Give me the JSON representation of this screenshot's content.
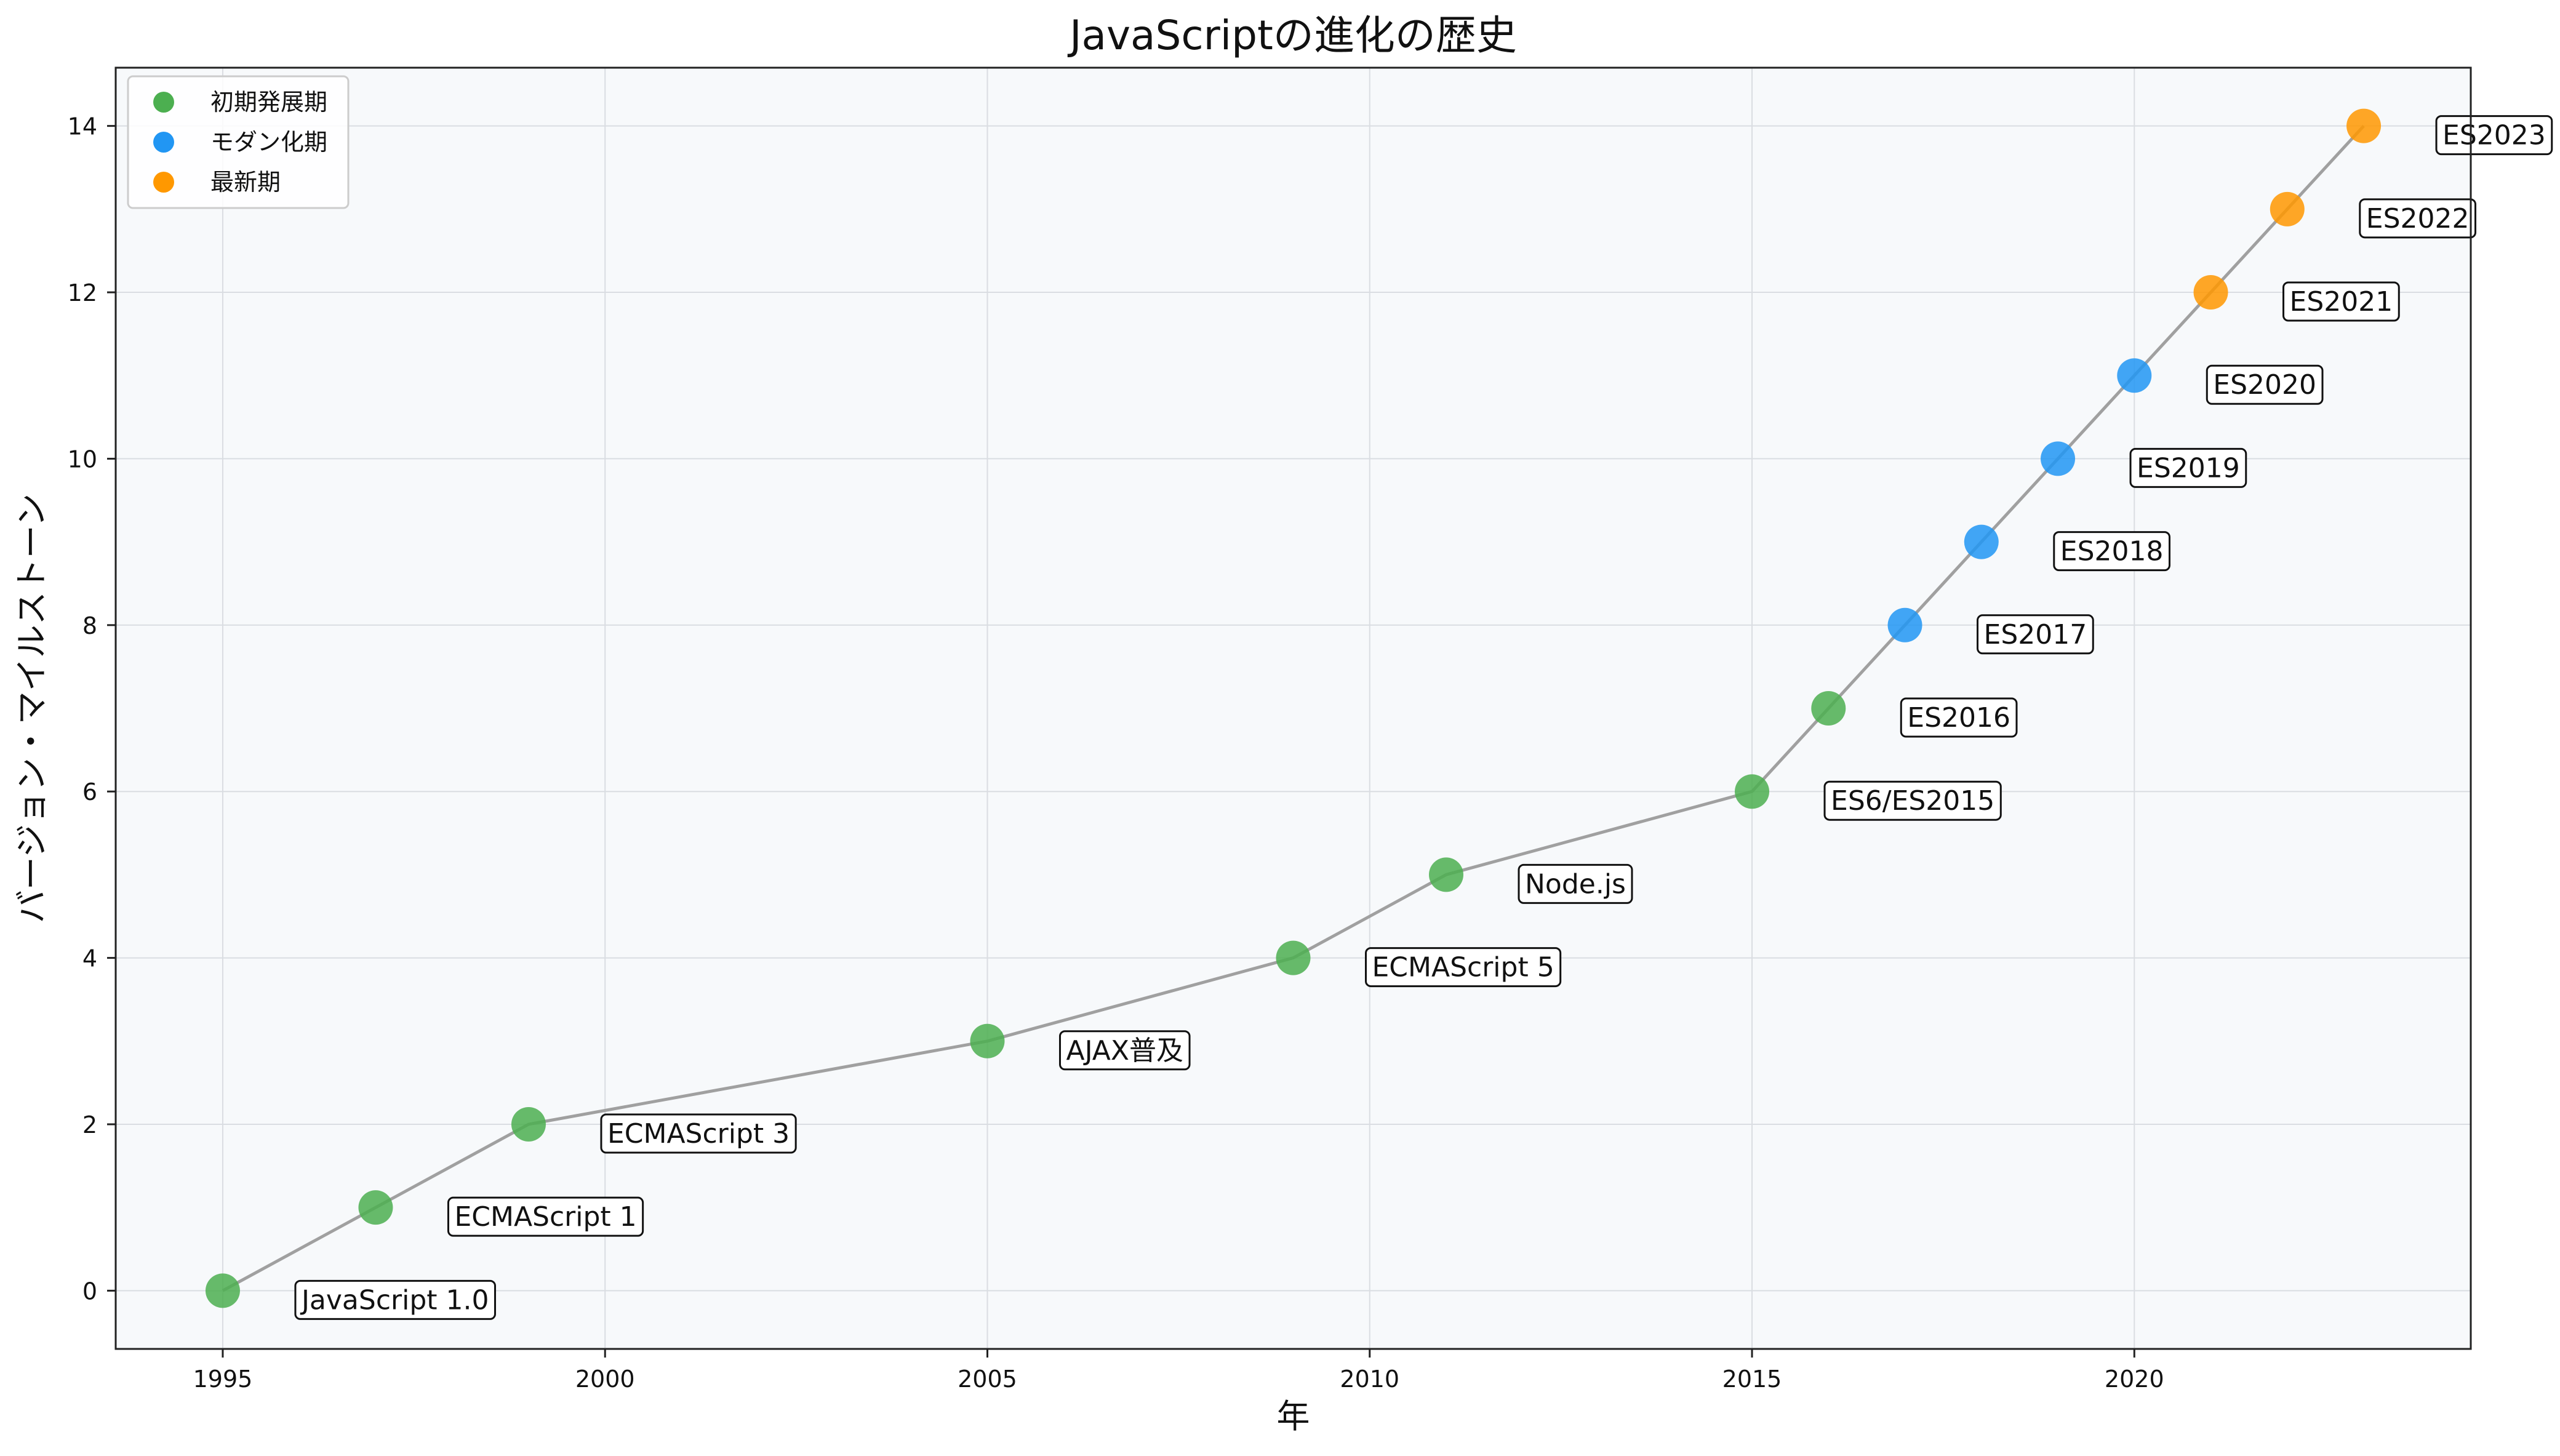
{
  "chart_data": {
    "type": "scatter",
    "title": "JavaScriptの進化の歴史",
    "xlabel": "年",
    "ylabel": "バージョン・マイルストーン",
    "xlim": [
      1993.6,
      2024.4
    ],
    "ylim": [
      -0.7,
      14.7
    ],
    "xticks": [
      1995,
      2000,
      2005,
      2010,
      2015,
      2020
    ],
    "yticks": [
      0,
      2,
      4,
      6,
      8,
      10,
      12,
      14
    ],
    "grid": true,
    "legend_position": "top-left",
    "connecting_line": true,
    "series": [
      {
        "name": "初期発展期",
        "color": "#4CAF50",
        "points": [
          {
            "x": 1995,
            "y": 0,
            "label": "JavaScript 1.0"
          },
          {
            "x": 1997,
            "y": 1,
            "label": "ECMAScript 1"
          },
          {
            "x": 1999,
            "y": 2,
            "label": "ECMAScript 3"
          },
          {
            "x": 2005,
            "y": 3,
            "label": "AJAX普及"
          },
          {
            "x": 2009,
            "y": 4,
            "label": "ECMAScript 5"
          },
          {
            "x": 2011,
            "y": 5,
            "label": "Node.js"
          },
          {
            "x": 2015,
            "y": 6,
            "label": "ES6/ES2015"
          },
          {
            "x": 2016,
            "y": 7,
            "label": "ES2016"
          }
        ]
      },
      {
        "name": "モダン化期",
        "color": "#2196F3",
        "points": [
          {
            "x": 2017,
            "y": 8,
            "label": "ES2017"
          },
          {
            "x": 2018,
            "y": 9,
            "label": "ES2018"
          },
          {
            "x": 2019,
            "y": 10,
            "label": "ES2019"
          },
          {
            "x": 2020,
            "y": 11,
            "label": "ES2020"
          }
        ]
      },
      {
        "name": "最新期",
        "color": "#FF9800",
        "points": [
          {
            "x": 2021,
            "y": 12,
            "label": "ES2021"
          },
          {
            "x": 2022,
            "y": 13,
            "label": "ES2022"
          },
          {
            "x": 2023,
            "y": 14,
            "label": "ES2023"
          }
        ]
      }
    ],
    "line_color": "#A0A0A0",
    "plot_background": "#F7F9FB"
  }
}
